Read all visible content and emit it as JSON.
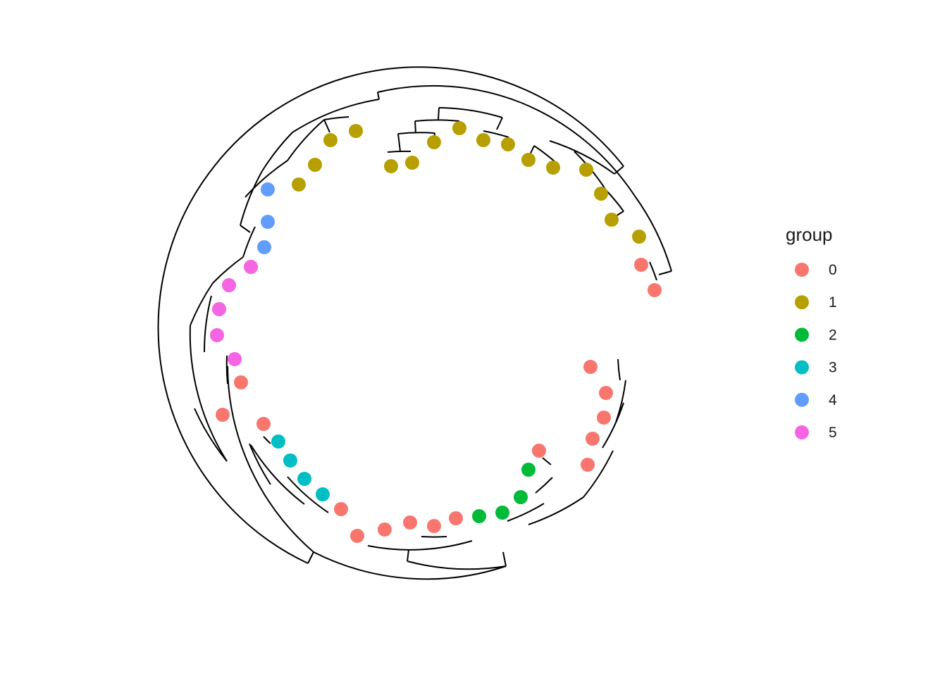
{
  "chart_data": {
    "type": "circular-dendrogram",
    "legend": {
      "title": "group",
      "placement": "right",
      "entries": [
        {
          "label": "0",
          "color": "#F8766D"
        },
        {
          "label": "1",
          "color": "#B79F00"
        },
        {
          "label": "2",
          "color": "#00BA38"
        },
        {
          "label": "3",
          "color": "#00BFC4"
        },
        {
          "label": "4",
          "color": "#619CFF"
        },
        {
          "label": "5",
          "color": "#F564E3"
        }
      ]
    },
    "tips": [
      {
        "group": "0"
      },
      {
        "group": "0"
      },
      {
        "group": "1"
      },
      {
        "group": "1"
      },
      {
        "group": "1"
      },
      {
        "group": "1"
      },
      {
        "group": "1"
      },
      {
        "group": "1"
      },
      {
        "group": "1"
      },
      {
        "group": "1"
      },
      {
        "group": "1"
      },
      {
        "group": "1"
      },
      {
        "group": "1"
      },
      {
        "group": "1"
      },
      {
        "group": "1"
      },
      {
        "group": "1"
      },
      {
        "group": "1"
      },
      {
        "group": "1"
      },
      {
        "group": "4"
      },
      {
        "group": "4"
      },
      {
        "group": "4"
      },
      {
        "group": "5"
      },
      {
        "group": "5"
      },
      {
        "group": "5"
      },
      {
        "group": "5"
      },
      {
        "group": "5"
      },
      {
        "group": "0"
      },
      {
        "group": "0"
      },
      {
        "group": "0"
      },
      {
        "group": "3"
      },
      {
        "group": "3"
      },
      {
        "group": "3"
      },
      {
        "group": "3"
      },
      {
        "group": "0"
      },
      {
        "group": "0"
      },
      {
        "group": "0"
      },
      {
        "group": "0"
      },
      {
        "group": "0"
      },
      {
        "group": "0"
      },
      {
        "group": "2"
      },
      {
        "group": "2"
      },
      {
        "group": "2"
      },
      {
        "group": "2"
      },
      {
        "group": "0"
      },
      {
        "group": "0"
      },
      {
        "group": "0"
      },
      {
        "group": "0"
      },
      {
        "group": "0"
      },
      {
        "group": "0"
      }
    ]
  }
}
